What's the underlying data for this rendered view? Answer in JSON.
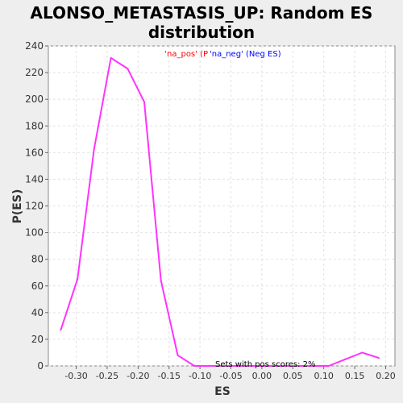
{
  "chart_data": {
    "type": "line",
    "title_lines": [
      "ALONSO_METASTASIS_UP: Random ES",
      "distribution"
    ],
    "xlabel": "ES",
    "ylabel": "P(ES)",
    "xlim": [
      -0.345,
      0.215
    ],
    "ylim": [
      0,
      240
    ],
    "x_ticks": [
      -0.3,
      -0.25,
      -0.2,
      -0.15,
      -0.1,
      -0.05,
      0.0,
      0.05,
      0.1,
      0.15,
      0.2
    ],
    "x_tick_labels": [
      "-0.30",
      "-0.25",
      "-0.20",
      "-0.15",
      "-0.10",
      "-0.05",
      "0.00",
      "0.05",
      "0.10",
      "0.15",
      "0.20"
    ],
    "y_ticks": [
      0,
      20,
      40,
      60,
      80,
      100,
      120,
      140,
      160,
      180,
      200,
      220,
      240
    ],
    "grid": true,
    "legend": {
      "pos_label": "'na_pos' (P",
      "neg_label": "'na_neg' (Neg ES)",
      "pos_color": "#ff0000",
      "neg_color": "#0000ff",
      "placement": "top-center"
    },
    "annotation": "Sets with pos scores: 2%",
    "series": [
      {
        "color": "#ff33ff",
        "x": [
          -0.325,
          -0.298,
          -0.271,
          -0.244,
          -0.217,
          -0.19,
          -0.163,
          -0.136,
          -0.109,
          -0.082,
          -0.055,
          -0.028,
          0.0,
          0.027,
          0.054,
          0.081,
          0.108,
          0.135,
          0.162,
          0.189
        ],
        "y": [
          27,
          65,
          163,
          231,
          223,
          198,
          64,
          8,
          0,
          0,
          0,
          0,
          0,
          0,
          0,
          0,
          0,
          5,
          10,
          6
        ]
      }
    ]
  }
}
